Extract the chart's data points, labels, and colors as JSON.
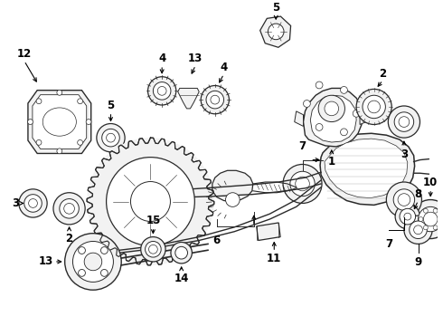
{
  "background_color": "#ffffff",
  "line_color": "#2a2a2a",
  "label_color": "#000000",
  "figsize": [
    4.9,
    3.6
  ],
  "dpi": 100,
  "lw": 0.8,
  "gray_fill": "#e8e8e8",
  "light_fill": "#f2f2f2"
}
